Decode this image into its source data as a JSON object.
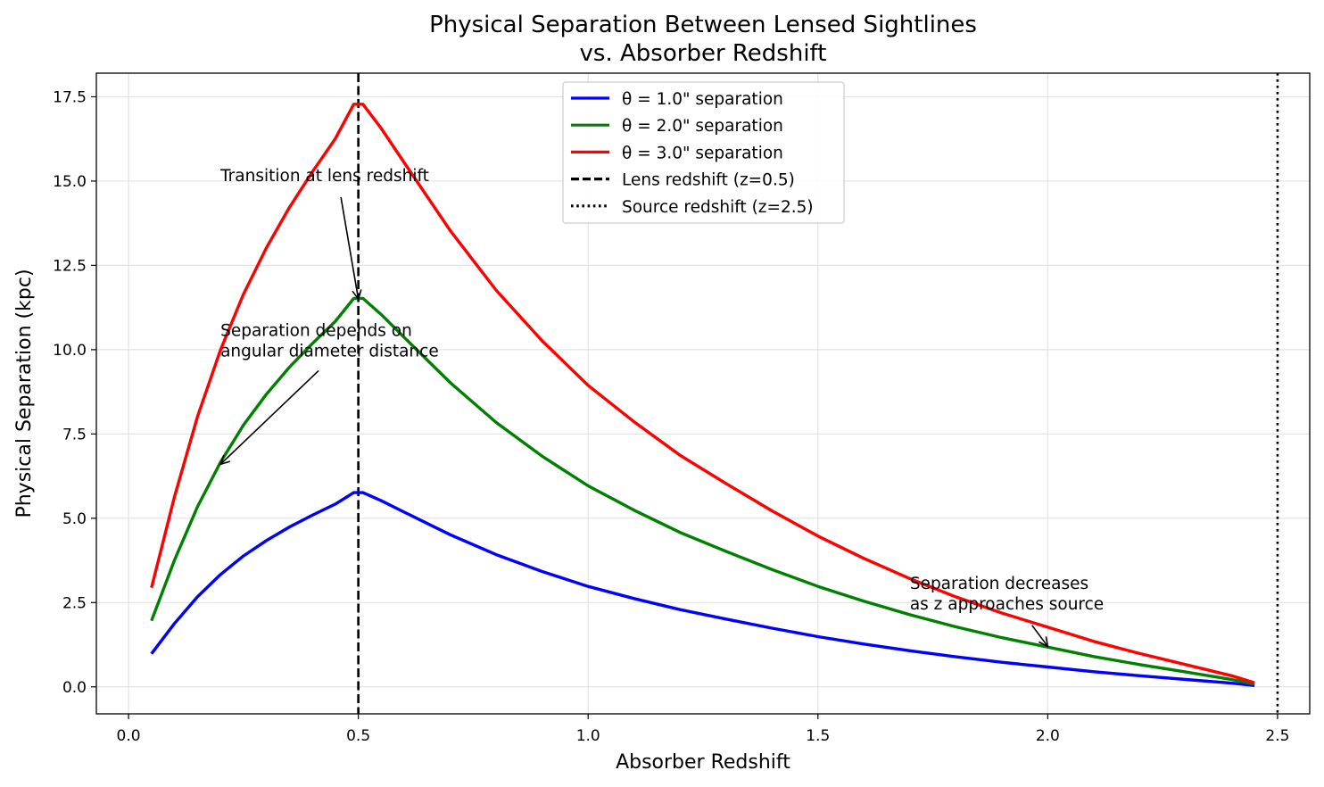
{
  "chart_data": {
    "type": "line",
    "title_lines": [
      "Physical Separation Between Lensed Sightlines",
      "vs. Absorber Redshift"
    ],
    "xlabel": "Absorber Redshift",
    "ylabel": "Physical Separation (kpc)",
    "xlim": [
      -0.07,
      2.57
    ],
    "ylim": [
      -0.8,
      18.2
    ],
    "xticks": [
      0.0,
      0.5,
      1.0,
      1.5,
      2.0,
      2.5
    ],
    "xtick_labels": [
      "0.0",
      "0.5",
      "1.0",
      "1.5",
      "2.0",
      "2.5"
    ],
    "yticks": [
      0.0,
      2.5,
      5.0,
      7.5,
      10.0,
      12.5,
      15.0,
      17.5
    ],
    "ytick_labels": [
      "0.0",
      "2.5",
      "5.0",
      "7.5",
      "10.0",
      "12.5",
      "15.0",
      "17.5"
    ],
    "grid": true,
    "legend_position": "top-center",
    "series": [
      {
        "name": "θ = 1.0\" separation",
        "color": "#0000ff",
        "x": [
          0.05,
          0.1,
          0.15,
          0.2,
          0.25,
          0.3,
          0.35,
          0.4,
          0.45,
          0.49,
          0.51,
          0.55,
          0.6,
          0.7,
          0.8,
          0.9,
          1.0,
          1.1,
          1.2,
          1.3,
          1.4,
          1.5,
          1.6,
          1.7,
          1.8,
          1.9,
          2.0,
          2.1,
          2.2,
          2.3,
          2.4,
          2.45
        ],
        "y": [
          0.98,
          1.88,
          2.67,
          3.33,
          3.88,
          4.34,
          4.74,
          5.09,
          5.42,
          5.76,
          5.76,
          5.52,
          5.18,
          4.51,
          3.92,
          3.42,
          2.98,
          2.62,
          2.29,
          2.01,
          1.74,
          1.49,
          1.27,
          1.07,
          0.89,
          0.73,
          0.59,
          0.45,
          0.33,
          0.22,
          0.11,
          0.04
        ]
      },
      {
        "name": "θ = 2.0\" separation",
        "color": "#008000",
        "x": [
          0.05,
          0.1,
          0.15,
          0.2,
          0.25,
          0.3,
          0.35,
          0.4,
          0.45,
          0.49,
          0.51,
          0.55,
          0.6,
          0.7,
          0.8,
          0.9,
          1.0,
          1.1,
          1.2,
          1.3,
          1.4,
          1.5,
          1.6,
          1.7,
          1.8,
          1.9,
          2.0,
          2.1,
          2.2,
          2.3,
          2.4,
          2.45
        ],
        "y": [
          1.96,
          3.76,
          5.34,
          6.66,
          7.76,
          8.68,
          9.48,
          10.18,
          10.84,
          11.52,
          11.52,
          11.04,
          10.36,
          9.02,
          7.84,
          6.84,
          5.96,
          5.24,
          4.58,
          4.02,
          3.48,
          2.98,
          2.54,
          2.14,
          1.78,
          1.46,
          1.18,
          0.9,
          0.66,
          0.44,
          0.22,
          0.08
        ]
      },
      {
        "name": "θ = 3.0\" separation",
        "color": "#ff0000",
        "x": [
          0.05,
          0.1,
          0.15,
          0.2,
          0.25,
          0.3,
          0.35,
          0.4,
          0.45,
          0.49,
          0.51,
          0.55,
          0.6,
          0.7,
          0.8,
          0.9,
          1.0,
          1.1,
          1.2,
          1.3,
          1.4,
          1.5,
          1.6,
          1.7,
          1.8,
          1.9,
          2.0,
          2.1,
          2.2,
          2.3,
          2.4,
          2.45
        ],
        "y": [
          2.94,
          5.64,
          8.01,
          9.99,
          11.64,
          13.02,
          14.22,
          15.27,
          16.26,
          17.28,
          17.28,
          16.56,
          15.54,
          13.53,
          11.76,
          10.26,
          8.94,
          7.86,
          6.87,
          6.03,
          5.22,
          4.47,
          3.81,
          3.21,
          2.67,
          2.19,
          1.77,
          1.35,
          0.99,
          0.66,
          0.33,
          0.12
        ]
      }
    ],
    "reference_lines": [
      {
        "name": "Lens redshift (z=0.5)",
        "x": 0.5,
        "style": "dashed",
        "color": "#000000"
      },
      {
        "name": "Source redshift (z=2.5)",
        "x": 2.5,
        "style": "dotted",
        "color": "#000000"
      }
    ],
    "annotations": [
      {
        "lines": [
          "Transition at lens redshift"
        ],
        "text_at": [
          0.2,
          15.0
        ],
        "arrow_to": [
          0.5,
          11.5
        ]
      },
      {
        "lines": [
          "Separation depends on",
          "angular diameter distance"
        ],
        "text_at": [
          0.2,
          9.8
        ],
        "arrow_to": [
          0.2,
          6.6
        ]
      },
      {
        "lines": [
          "Separation decreases",
          "as z approaches source"
        ],
        "text_at": [
          1.7,
          2.3
        ],
        "arrow_to": [
          2.0,
          1.2
        ]
      }
    ]
  }
}
